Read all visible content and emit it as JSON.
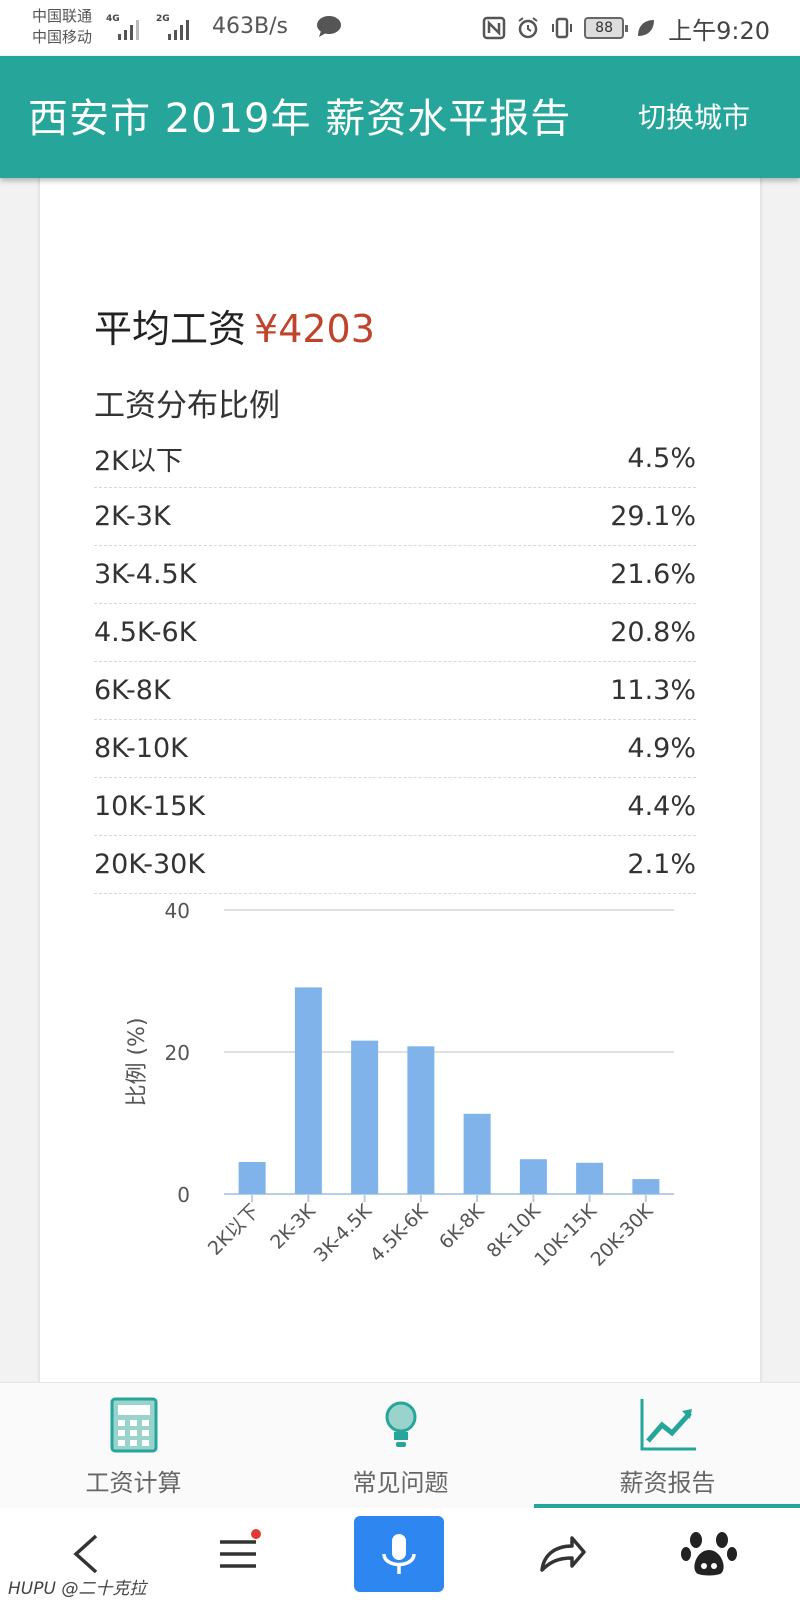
{
  "status_bar": {
    "carrier1": "中国联通",
    "carrier2": "中国移动",
    "net1": "4G",
    "net2": "2G",
    "speed": "463B/s",
    "battery": "88",
    "time": "上午9:20"
  },
  "app_bar": {
    "title": "西安市 2019年 薪资水平报告",
    "switch_city": "切换城市"
  },
  "report": {
    "avg_label": "平均工资",
    "avg_value": "¥4203",
    "dist_title": "工资分布比例",
    "rows": [
      {
        "range": "2K以下",
        "pct": "4.5%"
      },
      {
        "range": "2K-3K",
        "pct": "29.1%"
      },
      {
        "range": "3K-4.5K",
        "pct": "21.6%"
      },
      {
        "range": "4.5K-6K",
        "pct": "20.8%"
      },
      {
        "range": "6K-8K",
        "pct": "11.3%"
      },
      {
        "range": "8K-10K",
        "pct": "4.9%"
      },
      {
        "range": "10K-15K",
        "pct": "4.4%"
      },
      {
        "range": "20K-30K",
        "pct": "2.1%"
      }
    ]
  },
  "chart_data": {
    "type": "bar",
    "categories": [
      "2K以下",
      "2K-3K",
      "3K-4.5K",
      "4.5K-6K",
      "6K-8K",
      "8K-10K",
      "10K-15K",
      "20K-30K"
    ],
    "values": [
      4.5,
      29.1,
      21.6,
      20.8,
      11.3,
      4.9,
      4.4,
      2.1
    ],
    "ylabel": "比例 (%)",
    "ylim": [
      0,
      40
    ],
    "yticks": [
      "0",
      "20",
      "40"
    ],
    "grid": true,
    "bar_color": "#7fb3ea"
  },
  "tabs": [
    {
      "label": "工资计算",
      "icon": "calculator-icon",
      "active": false
    },
    {
      "label": "常见问题",
      "icon": "lightbulb-icon",
      "active": false
    },
    {
      "label": "薪资报告",
      "icon": "trend-chart-icon",
      "active": true
    }
  ],
  "browser_nav": {
    "watermark": "HUPU @二十克拉"
  },
  "colors": {
    "primary": "#26a69a",
    "accent_price": "#c0442c",
    "mic_button": "#2e86f0"
  }
}
